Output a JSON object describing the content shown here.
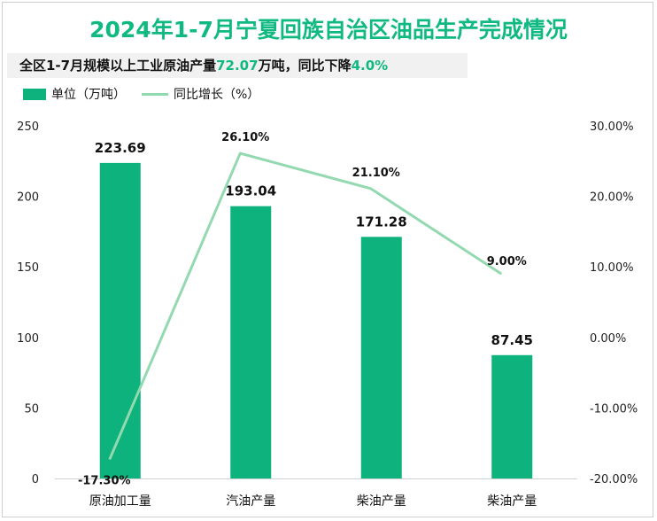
{
  "title": "2024年1-7月宁夏回族自治区油品生产完成情况",
  "subtitle": {
    "prefix": "全区1-7月规模以上工业原油产量",
    "value": "72.07",
    "middle": "万吨，同比下降",
    "pct": "4.0%"
  },
  "colors": {
    "bar": "#0db27d",
    "line": "#93d9b0",
    "accent": "#10b981"
  },
  "chart_data": {
    "type": "bar",
    "categories": [
      "原油加工量",
      "汽油产量",
      "柴油产量",
      "柴油产量"
    ],
    "series": [
      {
        "name": "单位（万吨）",
        "type": "bar",
        "axis": "left",
        "values": [
          223.69,
          193.04,
          171.28,
          87.45
        ],
        "labels": [
          "223.69",
          "193.04",
          "171.28",
          "87.45"
        ]
      },
      {
        "name": "同比增长（%）",
        "type": "line",
        "axis": "right",
        "values": [
          -17.3,
          26.1,
          21.1,
          9.0
        ],
        "labels": [
          "-17.30%",
          "26.10%",
          "21.10%",
          "9.00%"
        ]
      }
    ],
    "y_left": {
      "min": 0,
      "max": 250,
      "ticks": [
        "0",
        "50",
        "100",
        "150",
        "200",
        "250"
      ]
    },
    "y_right": {
      "min": -20,
      "max": 30,
      "ticks": [
        "-20.00%",
        "-10.00%",
        "0.00%",
        "10.00%",
        "20.00%",
        "30.00%"
      ]
    },
    "legend_position": "top-left",
    "grid": false
  }
}
